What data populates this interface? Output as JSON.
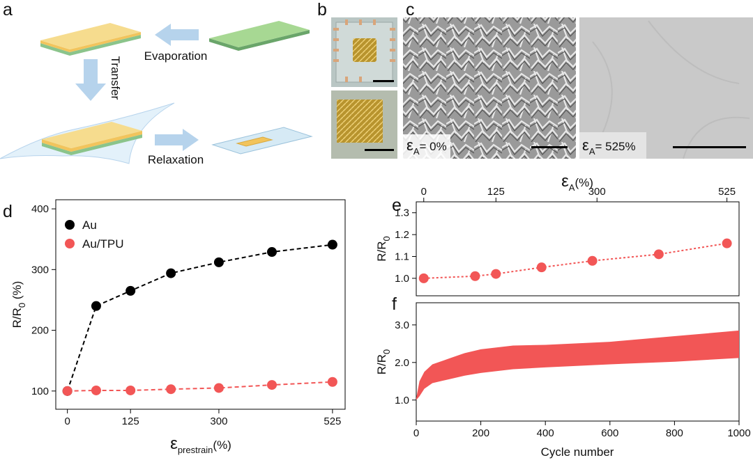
{
  "panels": {
    "a": {
      "label": "a",
      "steps": {
        "evaporation": "Evaporation",
        "transfer": "Transfer",
        "relaxation": "Relaxation"
      }
    },
    "b": {
      "label": "b"
    },
    "c": {
      "label": "c",
      "labels": [
        {
          "symbol": "ε",
          "sub": "A",
          "after": "= 0%"
        },
        {
          "symbol": "ε",
          "sub": "A",
          "after": "= 525%"
        }
      ]
    }
  },
  "chart_data": [
    {
      "type": "line",
      "panel_label": "d",
      "line_style": "dashed",
      "legend": "upper left",
      "xlabel": {
        "symbol": "ε",
        "sub": "prestrain",
        "after": "(%)"
      },
      "ylabel": {
        "main": "R/R",
        "sub": "0",
        "after": " (%)"
      },
      "x": [
        0,
        57,
        125,
        205,
        300,
        405,
        525
      ],
      "series": [
        {
          "name": "Au",
          "color": "#000000",
          "values": [
            100,
            240,
            265,
            294,
            312,
            329,
            341
          ]
        },
        {
          "name": "Au/TPU",
          "color": "#f25656",
          "values": [
            100,
            101,
            101,
            103,
            105,
            110,
            115
          ]
        }
      ],
      "xlim": [
        -23,
        550
      ],
      "xticks": [
        0,
        125,
        300,
        525
      ],
      "ylim": [
        70,
        415
      ],
      "yticks": [
        100,
        200,
        300,
        400
      ]
    },
    {
      "type": "line",
      "panel_label": "e",
      "line_style": "dotted",
      "x_axis_position": "top",
      "xlabel": {
        "symbol": "ε",
        "sub": "A",
        "after": "(%)"
      },
      "ylabel": {
        "main": "R/R",
        "sub": "0"
      },
      "x": [
        0,
        89,
        125,
        204,
        292,
        407,
        525
      ],
      "values": [
        1.0,
        1.01,
        1.02,
        1.05,
        1.08,
        1.11,
        1.16
      ],
      "color": "#f25656",
      "xlim": [
        -13,
        546
      ],
      "xticks": [
        0,
        125,
        300,
        525
      ],
      "ylim": [
        0.92,
        1.35
      ],
      "yticks": [
        {
          "value": 1,
          "label": "1.0"
        },
        1.1,
        1.2,
        1.3
      ]
    },
    {
      "type": "band",
      "panel_label": "f",
      "color": "#f25656",
      "xlabel": "Cycle number",
      "ylabel": {
        "main": "R/R",
        "sub": "0"
      },
      "x": [
        0,
        10,
        25,
        50,
        100,
        150,
        200,
        300,
        400,
        600,
        800,
        1000
      ],
      "upper": [
        1.05,
        1.5,
        1.75,
        1.95,
        2.1,
        2.25,
        2.35,
        2.45,
        2.47,
        2.55,
        2.7,
        2.85
      ],
      "lower": [
        1.0,
        1.1,
        1.3,
        1.45,
        1.55,
        1.65,
        1.72,
        1.82,
        1.87,
        1.95,
        2.02,
        2.12
      ],
      "xlim": [
        0,
        1000
      ],
      "xticks": [
        0,
        200,
        400,
        600,
        800,
        1000
      ],
      "ylim": [
        0.44,
        3.59
      ],
      "yticks": [
        {
          "value": 1,
          "label": "1.0"
        },
        {
          "value": 2,
          "label": "2.0"
        },
        {
          "value": 3,
          "label": "3.0"
        }
      ]
    }
  ]
}
